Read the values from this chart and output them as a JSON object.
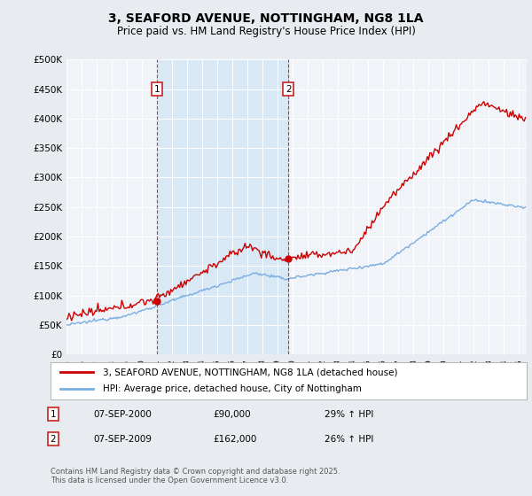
{
  "title": "3, SEAFORD AVENUE, NOTTINGHAM, NG8 1LA",
  "subtitle": "Price paid vs. HM Land Registry's House Price Index (HPI)",
  "legend_line1": "3, SEAFORD AVENUE, NOTTINGHAM, NG8 1LA (detached house)",
  "legend_line2": "HPI: Average price, detached house, City of Nottingham",
  "annotation1_date": "07-SEP-2000",
  "annotation1_price": "£90,000",
  "annotation1_hpi": "29% ↑ HPI",
  "annotation2_date": "07-SEP-2009",
  "annotation2_price": "£162,000",
  "annotation2_hpi": "26% ↑ HPI",
  "footnote": "Contains HM Land Registry data © Crown copyright and database right 2025.\nThis data is licensed under the Open Government Licence v3.0.",
  "line1_color": "#cc0000",
  "line2_color": "#7aade0",
  "shade_color": "#d8e8f5",
  "background_color": "#e8ecf0",
  "plot_bg_color": "#f0f4f8",
  "ylim": [
    0,
    500000
  ],
  "yticks": [
    0,
    50000,
    100000,
    150000,
    200000,
    250000,
    300000,
    350000,
    400000,
    450000,
    500000
  ],
  "vline1_x": 2001.0,
  "vline2_x": 2009.7,
  "sale1_x": 2001.0,
  "sale1_y": 90000,
  "sale2_x": 2009.7,
  "sale2_y": 162000,
  "xmin": 1995,
  "xmax": 2025.5
}
